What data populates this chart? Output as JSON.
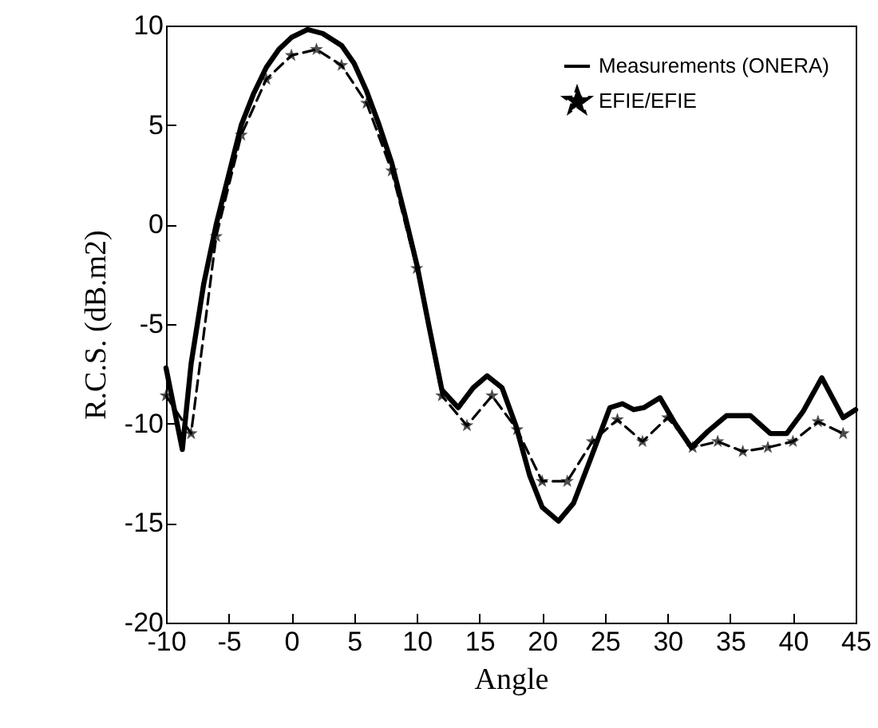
{
  "chart_data": {
    "type": "line",
    "xlabel": "Angle",
    "ylabel": "R.C.S. (dB.m2)",
    "xlim": [
      -10,
      45
    ],
    "xticks": [
      -10,
      -5,
      0,
      5,
      10,
      15,
      20,
      25,
      30,
      35,
      40,
      45
    ],
    "ylim": [
      -20,
      10
    ],
    "yticks": [
      -20,
      -15,
      -10,
      -5,
      0,
      5,
      10
    ],
    "grid": false,
    "legend": "top right",
    "series": [
      {
        "name": "Measurements (ONERA)",
        "color": "#000000",
        "line_style": "solid",
        "marker": "none",
        "x": [
          -10,
          -8.7,
          -8,
          -7,
          -6,
          -5,
          -4,
          -3,
          -2,
          -1,
          0,
          1.3,
          2.5,
          4,
          5,
          6,
          7,
          8,
          9,
          10,
          11,
          12,
          13.3,
          14.5,
          15.6,
          16.8,
          17.9,
          19,
          20,
          21.3,
          22.5,
          23.9,
          25.4,
          26.4,
          27.3,
          28.1,
          29.4,
          30.6,
          31.9,
          33.2,
          34.7,
          36.6,
          38.2,
          39.5,
          40.8,
          42.3,
          44,
          45
        ],
        "values": [
          -7.2,
          -11.3,
          -7,
          -3,
          0,
          2.5,
          5,
          6.6,
          7.9,
          8.8,
          9.4,
          9.8,
          9.6,
          9,
          8.1,
          6.7,
          5,
          3.1,
          0.6,
          -2,
          -5.2,
          -8.3,
          -9.2,
          -8.2,
          -7.6,
          -8.2,
          -10.1,
          -12.6,
          -14.2,
          -14.9,
          -14,
          -11.7,
          -9.2,
          -9,
          -9.3,
          -9.2,
          -8.7,
          -10,
          -11.2,
          -10.4,
          -9.6,
          -9.6,
          -10.5,
          -10.5,
          -9.4,
          -7.7,
          -9.7,
          -9.3
        ]
      },
      {
        "name": "EFIE/EFIE",
        "color": "#000000",
        "line_style": "dashed",
        "marker": "star",
        "x": [
          -10,
          -8,
          -6,
          -4,
          -2,
          0,
          2,
          4,
          6,
          8,
          10,
          12,
          14,
          16,
          18,
          20,
          22,
          24,
          26,
          28,
          30,
          32,
          34,
          36,
          38,
          40,
          42,
          44
        ],
        "values": [
          -8.6,
          -10.5,
          -0.6,
          4.5,
          7.3,
          8.5,
          8.8,
          8,
          6.1,
          2.7,
          -2.2,
          -8.6,
          -10.1,
          -8.6,
          -10.3,
          -12.9,
          -12.9,
          -10.9,
          -9.8,
          -10.9,
          -9.7,
          -11.2,
          -10.9,
          -11.4,
          -11.2,
          -10.9,
          -9.9,
          -10.5
        ]
      }
    ]
  }
}
